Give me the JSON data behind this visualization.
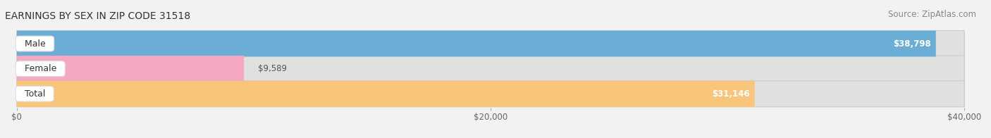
{
  "title": "EARNINGS BY SEX IN ZIP CODE 31518",
  "source": "Source: ZipAtlas.com",
  "categories": [
    "Male",
    "Female",
    "Total"
  ],
  "values": [
    38798,
    9589,
    31146
  ],
  "bar_colors": [
    "#6aaed6",
    "#f4a9c0",
    "#f9c57a"
  ],
  "label_values": [
    "$38,798",
    "$9,589",
    "$31,146"
  ],
  "xlim": [
    0,
    40000
  ],
  "xtick_labels": [
    "$0",
    "$20,000",
    "$40,000"
  ],
  "xtick_vals": [
    0,
    20000,
    40000
  ],
  "background_color": "#f2f2f2",
  "bar_bg_color": "#e0e0e0",
  "bar_bg_edge_color": "#d0d0d0",
  "title_fontsize": 10,
  "source_fontsize": 8.5,
  "label_fontsize": 8.5,
  "cat_fontsize": 9,
  "value_label_color_inside": "white",
  "value_label_color_outside": "#555555"
}
